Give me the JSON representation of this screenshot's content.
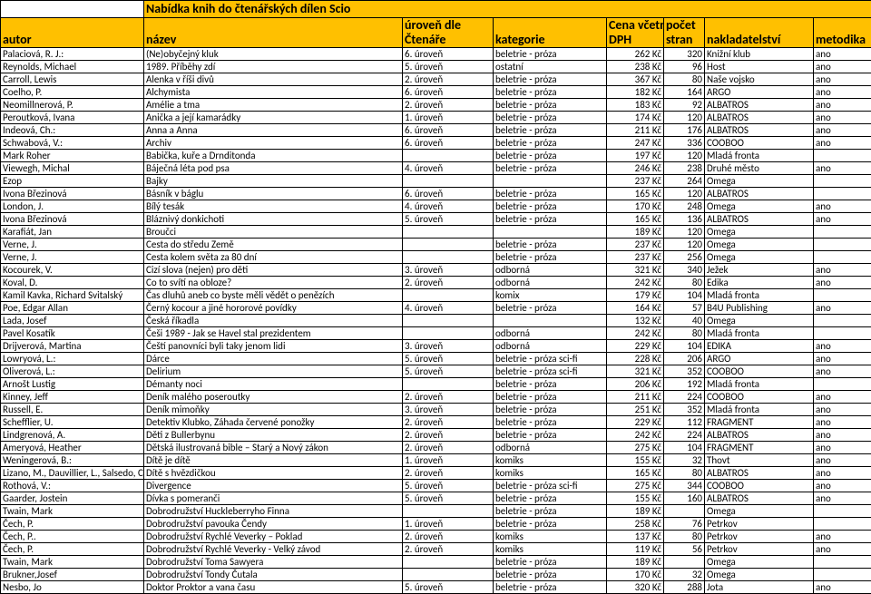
{
  "title": "Nabídka knih do čtenářských dílen Scio",
  "headers": {
    "autor": "autor",
    "nazev": "název",
    "uroven_top": "úroveň dle",
    "uroven_bot": "Čtenáře",
    "kategorie": "kategorie",
    "cena_top": "Cena včetně",
    "cena_bot": "DPH",
    "stran_top": "počet",
    "stran_bot": "stran",
    "nakl": "nakladatelství",
    "metodika": "metodika"
  },
  "rows": [
    {
      "autor": "Palaciová, R. J.:",
      "nazev": "(Ne)obyčejný kluk",
      "uroven": "6. úroveň",
      "kat": "beletrie - próza",
      "cena": "262 Kč",
      "stran": "320",
      "nakl": "Knižní klub",
      "met": "ano"
    },
    {
      "autor": "Reynolds, Michael",
      "nazev": "1989. Příběhy zdí",
      "uroven": "5. úroveň",
      "kat": "ostatní",
      "cena": "238 Kč",
      "stran": "96",
      "nakl": "Host",
      "met": "ano"
    },
    {
      "autor": "Carroll, Lewis",
      "nazev": "Alenka v říši divů",
      "uroven": "2. úroveň",
      "kat": "beletrie - próza",
      "cena": "367 Kč",
      "stran": "80",
      "nakl": "Naše vojsko",
      "met": "ano"
    },
    {
      "autor": "Coelho, P.",
      "nazev": "Alchymista",
      "uroven": "6. úroveň",
      "kat": "beletrie - próza",
      "cena": "182 Kč",
      "stran": "164",
      "nakl": "ARGO",
      "met": "ano"
    },
    {
      "autor": "Neomillnerová, P.",
      "nazev": "Amélie a tma",
      "uroven": "2. úroveň",
      "kat": "beletrie - próza",
      "cena": "183 Kč",
      "stran": "92",
      "nakl": "ALBATROS",
      "met": "ano"
    },
    {
      "autor": "Peroutková, Ivana",
      "nazev": "Anička a její kamarádky",
      "uroven": "1. úroveň",
      "kat": "beletrie - próza",
      "cena": "174 Kč",
      "stran": "120",
      "nakl": "ALBATROS",
      "met": "ano"
    },
    {
      "autor": "Indeová, Ch.:",
      "nazev": "Anna a Anna",
      "uroven": "6. úroveň",
      "kat": "beletrie - próza",
      "cena": "211 Kč",
      "stran": "176",
      "nakl": "ALBATROS",
      "met": "ano"
    },
    {
      "autor": "Schwabová, V.:",
      "nazev": "Archiv",
      "uroven": "6. úroveň",
      "kat": "beletrie - próza",
      "cena": "247 Kč",
      "stran": "336",
      "nakl": "COOBOO",
      "met": "ano"
    },
    {
      "autor": "Mark Roher",
      "nazev": "Babička, kuře a Drnditonda",
      "uroven": "",
      "kat": "beletrie - próza",
      "cena": "197 Kč",
      "stran": "120",
      "nakl": "Mladá fronta",
      "met": ""
    },
    {
      "autor": "Viewegh, Michal",
      "nazev": "Báječná léta pod psa",
      "uroven": "4. úroveň",
      "kat": "beletrie - próza",
      "cena": "246 Kč",
      "stran": "238",
      "nakl": "Druhé město",
      "met": "ano"
    },
    {
      "autor": "Ezop",
      "nazev": "Bajky",
      "uroven": "",
      "kat": "",
      "cena": "237 Kč",
      "stran": "264",
      "nakl": "Omega",
      "met": ""
    },
    {
      "autor": "Ivona Březinová",
      "nazev": "Básník v báglu",
      "uroven": "6. úroveň",
      "kat": "beletrie - próza",
      "cena": "165 Kč",
      "stran": "120",
      "nakl": "ALBATROS",
      "met": ""
    },
    {
      "autor": "London, J.",
      "nazev": "Bílý tesák",
      "uroven": "4. úroveň",
      "kat": "beletrie - próza",
      "cena": "170 Kč",
      "stran": "248",
      "nakl": "Omega",
      "met": "ano"
    },
    {
      "autor": "Ivona Březinová",
      "nazev": "Bláznivý donkichoti",
      "uroven": "5. úroveň",
      "kat": "beletrie - próza",
      "cena": "165 Kč",
      "stran": "136",
      "nakl": "ALBATROS",
      "met": "ano"
    },
    {
      "autor": "Karafiát, Jan",
      "nazev": "Broučci",
      "uroven": "",
      "kat": "",
      "cena": "189 Kč",
      "stran": "120",
      "nakl": "Omega",
      "met": ""
    },
    {
      "autor": "Verne, J.",
      "nazev": "Cesta do středu Země",
      "uroven": "",
      "kat": "beletrie - próza",
      "cena": "237 Kč",
      "stran": "120",
      "nakl": "Omega",
      "met": ""
    },
    {
      "autor": "Verne, J.",
      "nazev": "Cesta kolem světa za 80 dní",
      "uroven": "",
      "kat": "beletrie - próza",
      "cena": "237 Kč",
      "stran": "256",
      "nakl": "Omega",
      "met": ""
    },
    {
      "autor": "Kocourek, V.",
      "nazev": "Cizí slova (nejen) pro děti",
      "uroven": "3. úroveň",
      "kat": "odborná",
      "cena": "321 Kč",
      "stran": "340",
      "nakl": "Ježek",
      "met": "ano"
    },
    {
      "autor": "Koval, D.",
      "nazev": "Co to svítí na obloze?",
      "uroven": "2. úroveň",
      "kat": "odborná",
      "cena": "242 Kč",
      "stran": "80",
      "nakl": "Edika",
      "met": "ano"
    },
    {
      "autor": "Kamil Kavka, Richard Svitalský",
      "nazev": "Čas dluhů aneb co byste měli vědět o penězích",
      "uroven": "",
      "kat": "komix",
      "cena": "179 Kč",
      "stran": "104",
      "nakl": "Mladá fronta",
      "met": ""
    },
    {
      "autor": "Poe, Edgar Allan",
      "nazev": "Černý kocour a jiné hororové povídky",
      "uroven": "4. úroveň",
      "kat": "beletrie - próza",
      "cena": "164 Kč",
      "stran": "57",
      "nakl": "B4U Publishing",
      "met": "ano"
    },
    {
      "autor": "Lada, Josef",
      "nazev": "Česká říkadla",
      "uroven": "",
      "kat": "",
      "cena": "132 Kč",
      "stran": "40",
      "nakl": "Omega",
      "met": ""
    },
    {
      "autor": "Pavel Kosatík",
      "nazev": "Češi 1989 - Jak se Havel stal prezidentem",
      "uroven": "",
      "kat": "odborná",
      "cena": "242 Kč",
      "stran": "80",
      "nakl": "Mladá fronta",
      "met": ""
    },
    {
      "autor": "Drijverová, Martina",
      "nazev": "Čeští panovníci byli taky jenom lidi",
      "uroven": "3. úroveň",
      "kat": "odborná",
      "cena": "229 Kč",
      "stran": "104",
      "nakl": "EDIKA",
      "met": "ano"
    },
    {
      "autor": "Lowryová, L.:",
      "nazev": "Dárce",
      "uroven": "5. úroveň",
      "kat": "beletrie - próza sci-fi",
      "cena": "228 Kč",
      "stran": "206",
      "nakl": "ARGO",
      "met": "ano"
    },
    {
      "autor": "Oliverová, L.:",
      "nazev": "Delirium",
      "uroven": "5. úroveň",
      "kat": "beletrie - próza sci-fi",
      "cena": "321 Kč",
      "stran": "352",
      "nakl": "COOBOO",
      "met": "ano"
    },
    {
      "autor": "Arnošt Lustig",
      "nazev": "Démanty noci",
      "uroven": "",
      "kat": "beletrie - próza",
      "cena": "206 Kč",
      "stran": "192",
      "nakl": "Mladá fronta",
      "met": ""
    },
    {
      "autor": "Kinney, Jeff",
      "nazev": "Deník malého poseroutky",
      "uroven": "2. úroveň",
      "kat": "beletrie - próza",
      "cena": "211 Kč",
      "stran": "224",
      "nakl": "COOBOO",
      "met": "ano"
    },
    {
      "autor": "Russell, E.",
      "nazev": "Deník mimoňky",
      "uroven": "3. úroveň",
      "kat": "beletrie - próza",
      "cena": "251 Kč",
      "stran": "352",
      "nakl": "Mladá fronta",
      "met": "ano"
    },
    {
      "autor": "Schefflier, U.",
      "nazev": "Detektiv Klubko, Záhada červené ponožky",
      "uroven": "2. úroveň",
      "kat": "beletrie - próza",
      "cena": "229 Kč",
      "stran": "112",
      "nakl": "FRAGMENT",
      "met": "ano"
    },
    {
      "autor": "Lindgrenová, A.",
      "nazev": "Děti z Bullerbynu",
      "uroven": "2. úroveň",
      "kat": "beletrie - próza",
      "cena": "242 Kč",
      "stran": "224",
      "nakl": "ALBATROS",
      "met": "ano"
    },
    {
      "autor": "Ameryová, Heather",
      "nazev": "Dětská ilustrovaná bible – Starý a Nový zákon",
      "uroven": "2. úroveň",
      "kat": "odborná",
      "cena": "275 Kč",
      "stran": "104",
      "nakl": "FRAGMENT",
      "met": "ano"
    },
    {
      "autor": "Weningerová, B.:",
      "nazev": "Dítě je dítě",
      "uroven": "1. úroveň",
      "kat": "komiks",
      "cena": "155 Kč",
      "stran": "32",
      "nakl": "Thovt",
      "met": "ano"
    },
    {
      "autor": "Lizano, M., Dauvillier, L., Salsedo, C",
      "nazev": "Dítě s hvězdičkou",
      "uroven": "2. úroveň",
      "kat": "komiks",
      "cena": "165 Kč",
      "stran": "80",
      "nakl": "ALBATROS",
      "met": "ano"
    },
    {
      "autor": "Rothová, V.:",
      "nazev": "Divergence",
      "uroven": "5. úroveň",
      "kat": "beletrie - próza sci-fi",
      "cena": "275 Kč",
      "stran": "344",
      "nakl": "COOBOO",
      "met": "ano"
    },
    {
      "autor": "Gaarder, Jostein",
      "nazev": "Dívka s pomeranči",
      "uroven": "5. úroveň",
      "kat": "beletrie - próza",
      "cena": "155 Kč",
      "stran": "160",
      "nakl": "ALBATROS",
      "met": "ano"
    },
    {
      "autor": "Twain, Mark",
      "nazev": "Dobrodružství Huckleberryho Finna",
      "uroven": "",
      "kat": "beletrie - próza",
      "cena": "189 Kč",
      "stran": "",
      "nakl": "Omega",
      "met": ""
    },
    {
      "autor": "Čech, P.",
      "nazev": "Dobrodružství pavouka Čendy",
      "uroven": "1. úroveň",
      "kat": "beletrie - próza",
      "cena": "258 Kč",
      "stran": "76",
      "nakl": "Petrkov",
      "met": ""
    },
    {
      "autor": "Čech, P..",
      "nazev": "Dobrodružství Rychlé Veverky – Poklad",
      "uroven": "2. úroveň",
      "kat": "komiks",
      "cena": "137 Kč",
      "stran": "80",
      "nakl": "Petrkov",
      "met": "ano"
    },
    {
      "autor": "Čech, P.",
      "nazev": "Dobrodružství Rychlé Veverky - Velký závod",
      "uroven": "2. úroveň",
      "kat": "komiks",
      "cena": "119 Kč",
      "stran": "56",
      "nakl": "Petrkov",
      "met": "ano"
    },
    {
      "autor": "Twain, Mark",
      "nazev": "Dobrodružství Toma Sawyera",
      "uroven": "",
      "kat": "beletrie - próza",
      "cena": "189 Kč",
      "stran": "",
      "nakl": "Omega",
      "met": ""
    },
    {
      "autor": "Brukner,Josef",
      "nazev": "Dobrodružství Tondy Čutala",
      "uroven": "",
      "kat": "beletrie - próza",
      "cena": "170 Kč",
      "stran": "32",
      "nakl": "Omega",
      "met": ""
    },
    {
      "autor": "Nesbo, Jo",
      "nazev": "Doktor Proktor a vana času",
      "uroven": "5. úroveň",
      "kat": "beletrie - próza",
      "cena": "320 Kč",
      "stran": "288",
      "nakl": "Jota",
      "met": "ano"
    }
  ]
}
